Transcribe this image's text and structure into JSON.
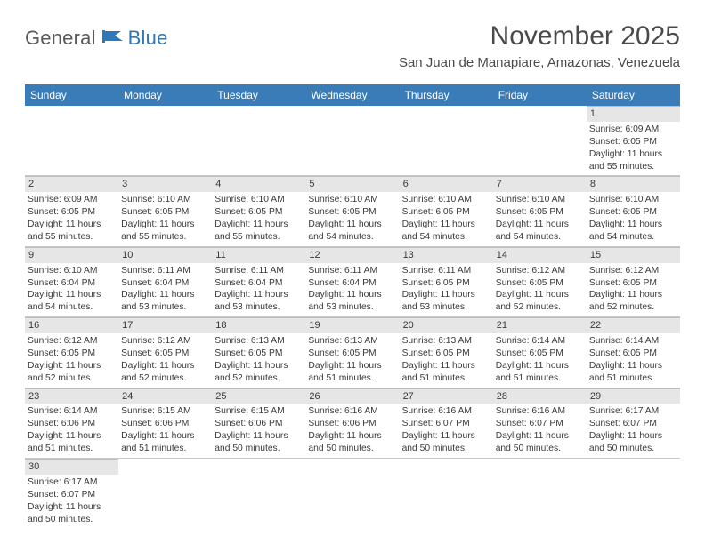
{
  "logo": {
    "general": "General",
    "blue": "Blue"
  },
  "title": "November 2025",
  "location": "San Juan de Manapiare, Amazonas, Venezuela",
  "colors": {
    "headerBg": "#3a7cb8",
    "headerText": "#ffffff",
    "dayBg": "#e6e6e6",
    "border": "#c8c8c8",
    "text": "#3a3a3a"
  },
  "weekdays": [
    "Sunday",
    "Monday",
    "Tuesday",
    "Wednesday",
    "Thursday",
    "Friday",
    "Saturday"
  ],
  "weeks": [
    [
      null,
      null,
      null,
      null,
      null,
      null,
      {
        "n": "1",
        "sr": "Sunrise: 6:09 AM",
        "ss": "Sunset: 6:05 PM",
        "dl": "Daylight: 11 hours and 55 minutes."
      }
    ],
    [
      {
        "n": "2",
        "sr": "Sunrise: 6:09 AM",
        "ss": "Sunset: 6:05 PM",
        "dl": "Daylight: 11 hours and 55 minutes."
      },
      {
        "n": "3",
        "sr": "Sunrise: 6:10 AM",
        "ss": "Sunset: 6:05 PM",
        "dl": "Daylight: 11 hours and 55 minutes."
      },
      {
        "n": "4",
        "sr": "Sunrise: 6:10 AM",
        "ss": "Sunset: 6:05 PM",
        "dl": "Daylight: 11 hours and 55 minutes."
      },
      {
        "n": "5",
        "sr": "Sunrise: 6:10 AM",
        "ss": "Sunset: 6:05 PM",
        "dl": "Daylight: 11 hours and 54 minutes."
      },
      {
        "n": "6",
        "sr": "Sunrise: 6:10 AM",
        "ss": "Sunset: 6:05 PM",
        "dl": "Daylight: 11 hours and 54 minutes."
      },
      {
        "n": "7",
        "sr": "Sunrise: 6:10 AM",
        "ss": "Sunset: 6:05 PM",
        "dl": "Daylight: 11 hours and 54 minutes."
      },
      {
        "n": "8",
        "sr": "Sunrise: 6:10 AM",
        "ss": "Sunset: 6:05 PM",
        "dl": "Daylight: 11 hours and 54 minutes."
      }
    ],
    [
      {
        "n": "9",
        "sr": "Sunrise: 6:10 AM",
        "ss": "Sunset: 6:04 PM",
        "dl": "Daylight: 11 hours and 54 minutes."
      },
      {
        "n": "10",
        "sr": "Sunrise: 6:11 AM",
        "ss": "Sunset: 6:04 PM",
        "dl": "Daylight: 11 hours and 53 minutes."
      },
      {
        "n": "11",
        "sr": "Sunrise: 6:11 AM",
        "ss": "Sunset: 6:04 PM",
        "dl": "Daylight: 11 hours and 53 minutes."
      },
      {
        "n": "12",
        "sr": "Sunrise: 6:11 AM",
        "ss": "Sunset: 6:04 PM",
        "dl": "Daylight: 11 hours and 53 minutes."
      },
      {
        "n": "13",
        "sr": "Sunrise: 6:11 AM",
        "ss": "Sunset: 6:05 PM",
        "dl": "Daylight: 11 hours and 53 minutes."
      },
      {
        "n": "14",
        "sr": "Sunrise: 6:12 AM",
        "ss": "Sunset: 6:05 PM",
        "dl": "Daylight: 11 hours and 52 minutes."
      },
      {
        "n": "15",
        "sr": "Sunrise: 6:12 AM",
        "ss": "Sunset: 6:05 PM",
        "dl": "Daylight: 11 hours and 52 minutes."
      }
    ],
    [
      {
        "n": "16",
        "sr": "Sunrise: 6:12 AM",
        "ss": "Sunset: 6:05 PM",
        "dl": "Daylight: 11 hours and 52 minutes."
      },
      {
        "n": "17",
        "sr": "Sunrise: 6:12 AM",
        "ss": "Sunset: 6:05 PM",
        "dl": "Daylight: 11 hours and 52 minutes."
      },
      {
        "n": "18",
        "sr": "Sunrise: 6:13 AM",
        "ss": "Sunset: 6:05 PM",
        "dl": "Daylight: 11 hours and 52 minutes."
      },
      {
        "n": "19",
        "sr": "Sunrise: 6:13 AM",
        "ss": "Sunset: 6:05 PM",
        "dl": "Daylight: 11 hours and 51 minutes."
      },
      {
        "n": "20",
        "sr": "Sunrise: 6:13 AM",
        "ss": "Sunset: 6:05 PM",
        "dl": "Daylight: 11 hours and 51 minutes."
      },
      {
        "n": "21",
        "sr": "Sunrise: 6:14 AM",
        "ss": "Sunset: 6:05 PM",
        "dl": "Daylight: 11 hours and 51 minutes."
      },
      {
        "n": "22",
        "sr": "Sunrise: 6:14 AM",
        "ss": "Sunset: 6:05 PM",
        "dl": "Daylight: 11 hours and 51 minutes."
      }
    ],
    [
      {
        "n": "23",
        "sr": "Sunrise: 6:14 AM",
        "ss": "Sunset: 6:06 PM",
        "dl": "Daylight: 11 hours and 51 minutes."
      },
      {
        "n": "24",
        "sr": "Sunrise: 6:15 AM",
        "ss": "Sunset: 6:06 PM",
        "dl": "Daylight: 11 hours and 51 minutes."
      },
      {
        "n": "25",
        "sr": "Sunrise: 6:15 AM",
        "ss": "Sunset: 6:06 PM",
        "dl": "Daylight: 11 hours and 50 minutes."
      },
      {
        "n": "26",
        "sr": "Sunrise: 6:16 AM",
        "ss": "Sunset: 6:06 PM",
        "dl": "Daylight: 11 hours and 50 minutes."
      },
      {
        "n": "27",
        "sr": "Sunrise: 6:16 AM",
        "ss": "Sunset: 6:07 PM",
        "dl": "Daylight: 11 hours and 50 minutes."
      },
      {
        "n": "28",
        "sr": "Sunrise: 6:16 AM",
        "ss": "Sunset: 6:07 PM",
        "dl": "Daylight: 11 hours and 50 minutes."
      },
      {
        "n": "29",
        "sr": "Sunrise: 6:17 AM",
        "ss": "Sunset: 6:07 PM",
        "dl": "Daylight: 11 hours and 50 minutes."
      }
    ],
    [
      {
        "n": "30",
        "sr": "Sunrise: 6:17 AM",
        "ss": "Sunset: 6:07 PM",
        "dl": "Daylight: 11 hours and 50 minutes."
      },
      null,
      null,
      null,
      null,
      null,
      null
    ]
  ]
}
